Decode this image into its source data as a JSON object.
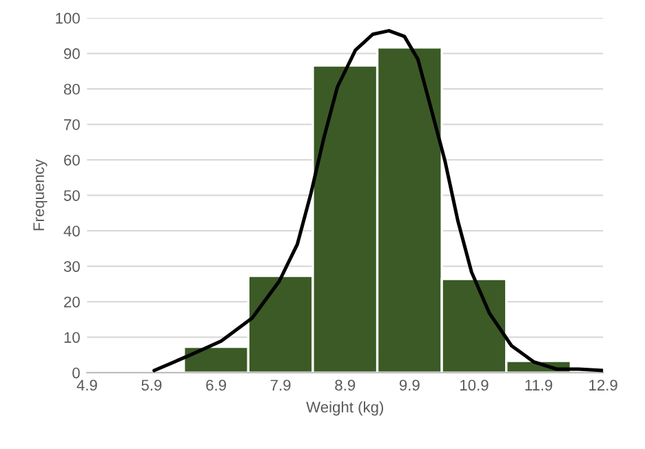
{
  "chart_data": {
    "type": "histogram",
    "xlabel": "Weight (kg)",
    "ylabel": "Frequency",
    "bins": [
      5.4,
      6.4,
      7.4,
      8.4,
      9.4,
      10.4,
      11.4,
      12.4
    ],
    "values": [
      0.5,
      7.3,
      27.3,
      86.6,
      91.7,
      26.4,
      3.3
    ],
    "colors": [
      "#b8c4b0",
      "#3b5a25",
      "#3b5a25",
      "#3b5a25",
      "#3b5a25",
      "#3b5a25",
      "#3b5a25"
    ],
    "series": [
      {
        "type": "line",
        "color": "#000000",
        "x": [
          5.94,
          6.49,
          6.98,
          7.46,
          7.88,
          8.16,
          8.37,
          8.57,
          8.78,
          9.06,
          9.33,
          9.58,
          9.82,
          10.03,
          10.24,
          10.45,
          10.65,
          10.86,
          11.14,
          11.48,
          11.83,
          12.18,
          12.52,
          12.9
        ],
        "values": [
          0.6,
          4.9,
          8.9,
          15.4,
          25.8,
          36.2,
          50.5,
          66.1,
          80.5,
          90.9,
          95.4,
          96.4,
          94.8,
          88.3,
          74,
          59.6,
          42.7,
          28.4,
          16.7,
          7.6,
          3.0,
          1.0,
          1.0,
          0.6
        ]
      }
    ],
    "xlim": [
      4.9,
      12.9
    ],
    "xticks": [
      4.9,
      5.9,
      6.9,
      7.9,
      8.9,
      9.9,
      10.9,
      11.9,
      12.9
    ],
    "ylim": [
      0,
      100
    ],
    "yticks": [
      0,
      10,
      20,
      30,
      40,
      50,
      60,
      70,
      80,
      90,
      100
    ],
    "grid": "y",
    "line_style": "solid",
    "marker": "none"
  }
}
